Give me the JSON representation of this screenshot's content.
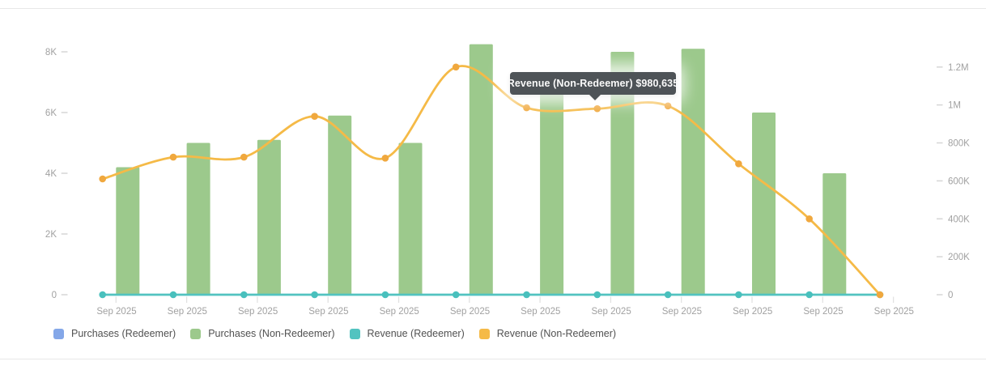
{
  "panel": {
    "background": "#ffffff",
    "border_color": "#e8e8e8"
  },
  "tooltip": {
    "text": "Revenue (Non-Redeemer) $980,635",
    "series": "Revenue (Non-Redeemer)",
    "value": "$980,635",
    "bg": "#4e5357",
    "text_color": "#fafafa",
    "point_index": 7
  },
  "legend": {
    "items": [
      {
        "label": "Purchases (Redeemer)",
        "color": "#84a7e8"
      },
      {
        "label": "Purchases (Non-Redeemer)",
        "color": "#9cc98c"
      },
      {
        "label": "Revenue (Redeemer)",
        "color": "#52c3c0"
      },
      {
        "label": "Revenue (Non-Redeemer)",
        "color": "#f5ba47"
      }
    ]
  },
  "chart_data": {
    "type": "mixed-bar-line",
    "title": "",
    "grid": false,
    "legend_position": "bottom",
    "categories": [
      "Sep 2025",
      "Sep 2025",
      "Sep 2025",
      "Sep 2025",
      "Sep 2025",
      "Sep 2025",
      "Sep 2025",
      "Sep 2025",
      "Sep 2025",
      "Sep 2025",
      "Sep 2025",
      "Sep 2025"
    ],
    "series": [
      {
        "name": "Purchases (Redeemer)",
        "type": "bar",
        "axis": "left",
        "color": "#84a7e8",
        "values": [
          0,
          0,
          0,
          0,
          0,
          0,
          0,
          0,
          0,
          0,
          0,
          0
        ]
      },
      {
        "name": "Purchases (Non-Redeemer)",
        "type": "bar",
        "axis": "left",
        "color": "#9cc98c",
        "values": [
          4200,
          5000,
          5100,
          5900,
          5000,
          8250,
          6600,
          8000,
          8100,
          6000,
          4000,
          0
        ]
      },
      {
        "name": "Revenue (Redeemer)",
        "type": "line",
        "axis": "right",
        "color": "#52c3c0",
        "marker_color": "#49c0bd",
        "values": [
          0,
          0,
          0,
          0,
          0,
          0,
          0,
          0,
          0,
          0,
          0,
          0
        ]
      },
      {
        "name": "Revenue (Non-Redeemer)",
        "type": "line",
        "axis": "right",
        "color": "#f5ba47",
        "marker_color": "#f0a83e",
        "values": [
          610000,
          725000,
          725000,
          940000,
          720000,
          1200000,
          985000,
          980635,
          995000,
          690000,
          400000,
          0
        ]
      }
    ],
    "left_axis": {
      "tick_labels": [
        "0",
        "2K",
        "4K",
        "6K",
        "8K"
      ],
      "tick_values": [
        0,
        2000,
        4000,
        6000,
        8000
      ],
      "min": 0,
      "max": 8000
    },
    "right_axis": {
      "tick_labels": [
        "0",
        "200K",
        "400K",
        "600K",
        "800K",
        "1M",
        "1.2M"
      ],
      "tick_values": [
        0,
        200000,
        400000,
        600000,
        800000,
        1000000,
        1200000
      ],
      "min": 0,
      "max": 1200000
    },
    "axis_text_color": "#a1a1a1",
    "tick_dash_color": "#d6d6d6"
  }
}
